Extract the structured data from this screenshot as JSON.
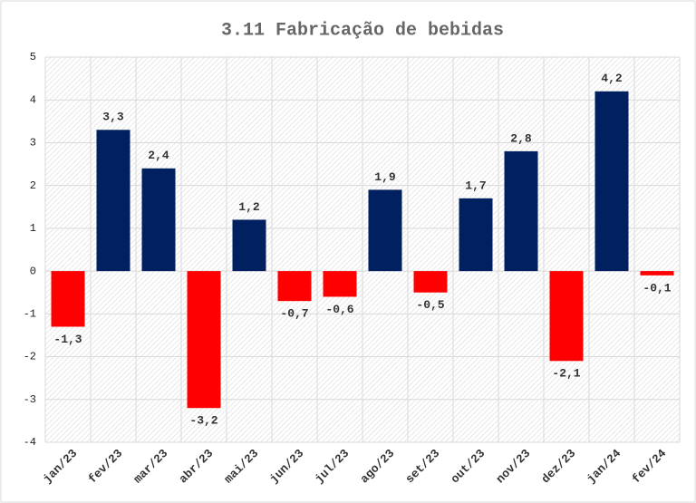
{
  "chart_data": {
    "type": "bar",
    "title": "3.11 Fabricação de bebidas",
    "categories": [
      "jan/23",
      "fev/23",
      "mar/23",
      "abr/23",
      "mai/23",
      "jun/23",
      "jul/23",
      "ago/23",
      "set/23",
      "out/23",
      "nov/23",
      "dez/23",
      "jan/24",
      "fev/24"
    ],
    "values": [
      -1.3,
      3.3,
      2.4,
      -3.2,
      1.2,
      -0.7,
      -0.6,
      1.9,
      -0.5,
      1.7,
      2.8,
      -2.1,
      4.2,
      -0.1
    ],
    "value_labels": [
      "-1,3",
      "3,3",
      "2,4",
      "-3,2",
      "1,2",
      "-0,7",
      "-0,6",
      "1,9",
      "-0,5",
      "1,7",
      "2,8",
      "-2,1",
      "4,2",
      "-0,1"
    ],
    "positive_color": "#002060",
    "negative_color": "#ff0000",
    "ylim": [
      -4,
      5
    ],
    "yticks": [
      -4,
      -3,
      -2,
      -1,
      0,
      1,
      2,
      3,
      4,
      5
    ],
    "grid": true
  }
}
